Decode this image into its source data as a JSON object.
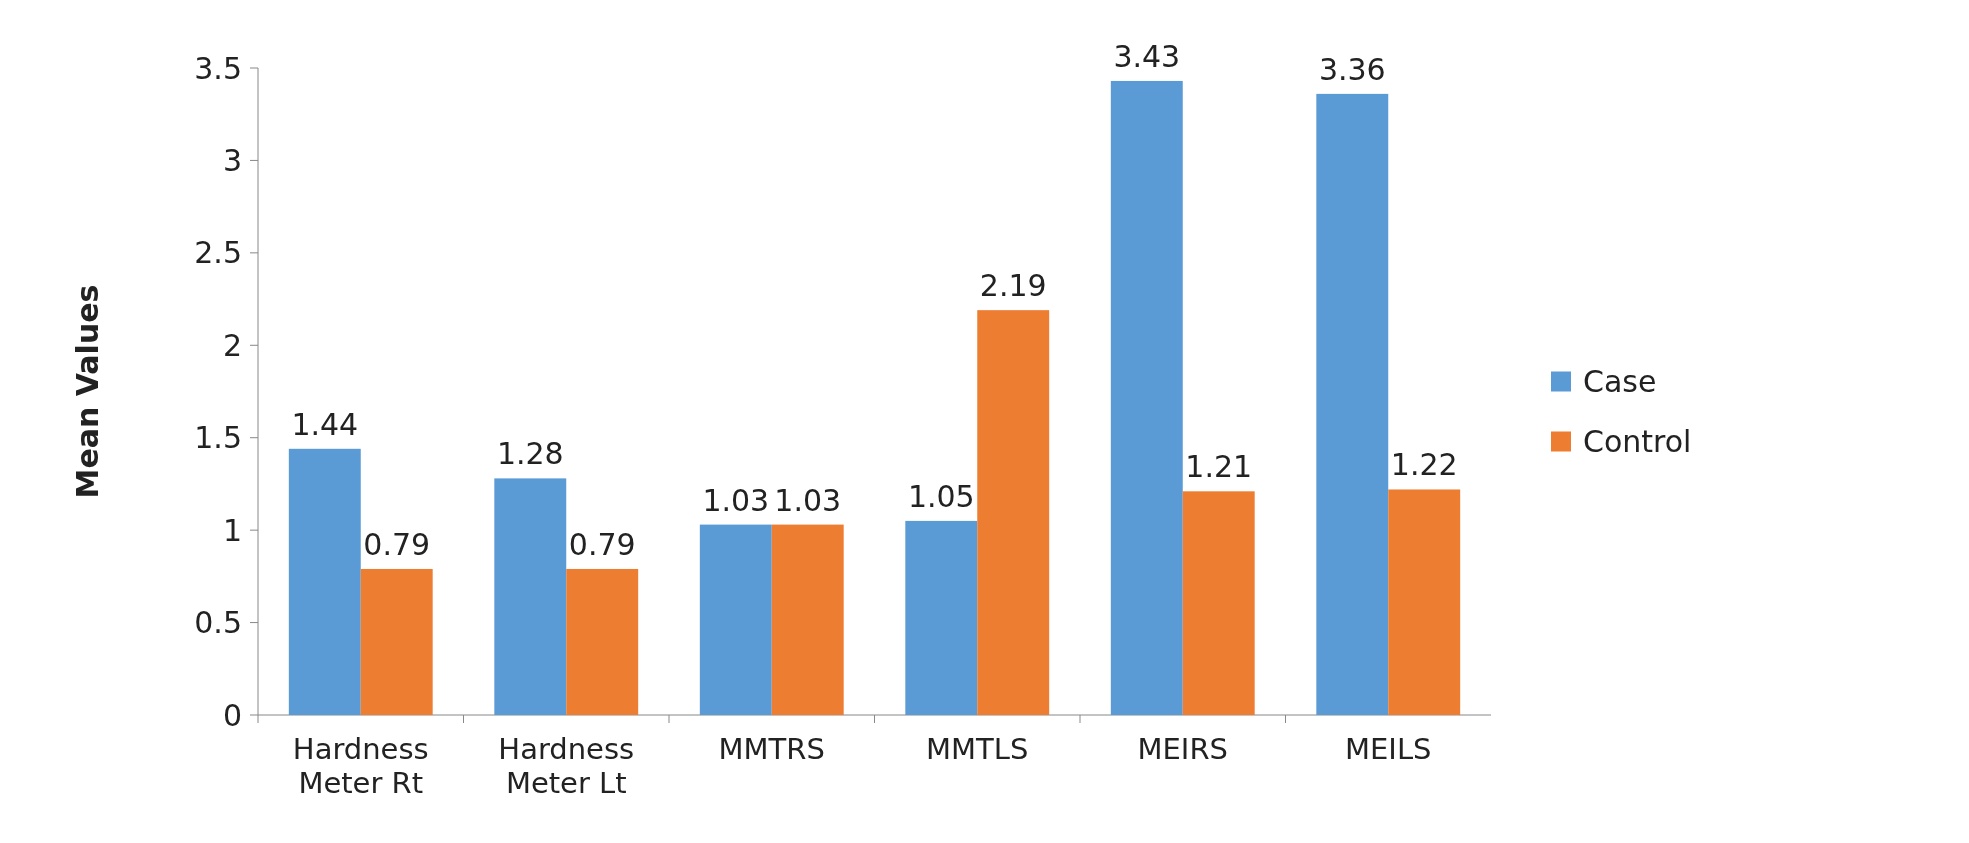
{
  "chart_data": {
    "type": "bar",
    "ylabel": "Mean Values",
    "categories": [
      "Hardness Meter Rt",
      "Hardness Meter Lt",
      "MMTRS",
      "MMTLS",
      "MEIRS",
      "MEILS"
    ],
    "series": [
      {
        "name": "Case",
        "color": "#5b9bd5",
        "values": [
          1.44,
          1.28,
          1.03,
          1.05,
          3.43,
          3.36
        ]
      },
      {
        "name": "Control",
        "color": "#ed7d31",
        "values": [
          0.79,
          0.79,
          1.03,
          2.19,
          1.21,
          1.22
        ]
      }
    ],
    "ylim": [
      0,
      3.5
    ],
    "yticks": [
      0,
      0.5,
      1,
      1.5,
      2,
      2.5,
      3,
      3.5
    ],
    "data_labels": true,
    "legend": "right"
  }
}
